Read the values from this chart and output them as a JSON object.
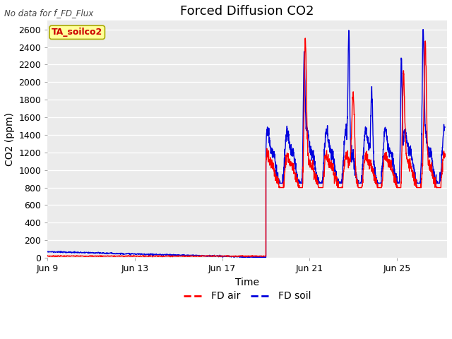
{
  "title": "Forced Diffusion CO2",
  "xlabel": "Time",
  "ylabel": "CO2 (ppm)",
  "ylim": [
    0,
    2700
  ],
  "yticks": [
    0,
    200,
    400,
    600,
    800,
    1000,
    1200,
    1400,
    1600,
    1800,
    2000,
    2200,
    2400,
    2600
  ],
  "xlim": [
    9.0,
    27.3
  ],
  "xtick_positions": [
    9,
    13,
    17,
    21,
    25
  ],
  "xtick_labels": [
    "Jun 9",
    "Jun 13",
    "Jun 17",
    "Jun 21",
    "Jun 25"
  ],
  "top_left_text": "No data for f_FD_Flux",
  "legend_box_label": "TA_soilco2",
  "bg_color": "#ebebeb",
  "line_red_label": "FD air",
  "line_blue_label": "FD soil",
  "red_color": "#ff0000",
  "blue_color": "#0000dd",
  "title_fontsize": 13,
  "axis_label_fontsize": 10,
  "tick_fontsize": 9,
  "pre_red": 20,
  "pre_blue": 60,
  "transition_day": 19.0
}
